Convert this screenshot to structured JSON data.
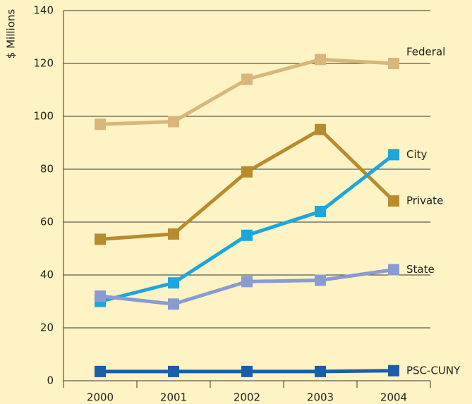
{
  "chart_data": {
    "type": "line",
    "y_label": "$ Millions",
    "categories": [
      "2000",
      "2001",
      "2002",
      "2003",
      "2004"
    ],
    "series": [
      {
        "name": "Federal",
        "color": "#d9b679",
        "values": [
          97,
          98,
          114,
          121.5,
          120
        ]
      },
      {
        "name": "Private",
        "color": "#b98b2b",
        "values": [
          53.5,
          55.5,
          79,
          95,
          68
        ]
      },
      {
        "name": "City",
        "color": "#1ba7dd",
        "values": [
          30,
          37,
          55,
          64,
          85.5
        ]
      },
      {
        "name": "State",
        "color": "#8a9bd1",
        "values": [
          32,
          29,
          37.5,
          38,
          42
        ]
      },
      {
        "name": "PSC-CUNY",
        "color": "#1a5da9",
        "values": [
          3.5,
          3.5,
          3.5,
          3.5,
          3.8
        ]
      }
    ],
    "ylim": [
      0,
      140
    ],
    "yticks": [
      0,
      20,
      40,
      60,
      80,
      100,
      120,
      140
    ],
    "grid": true
  }
}
